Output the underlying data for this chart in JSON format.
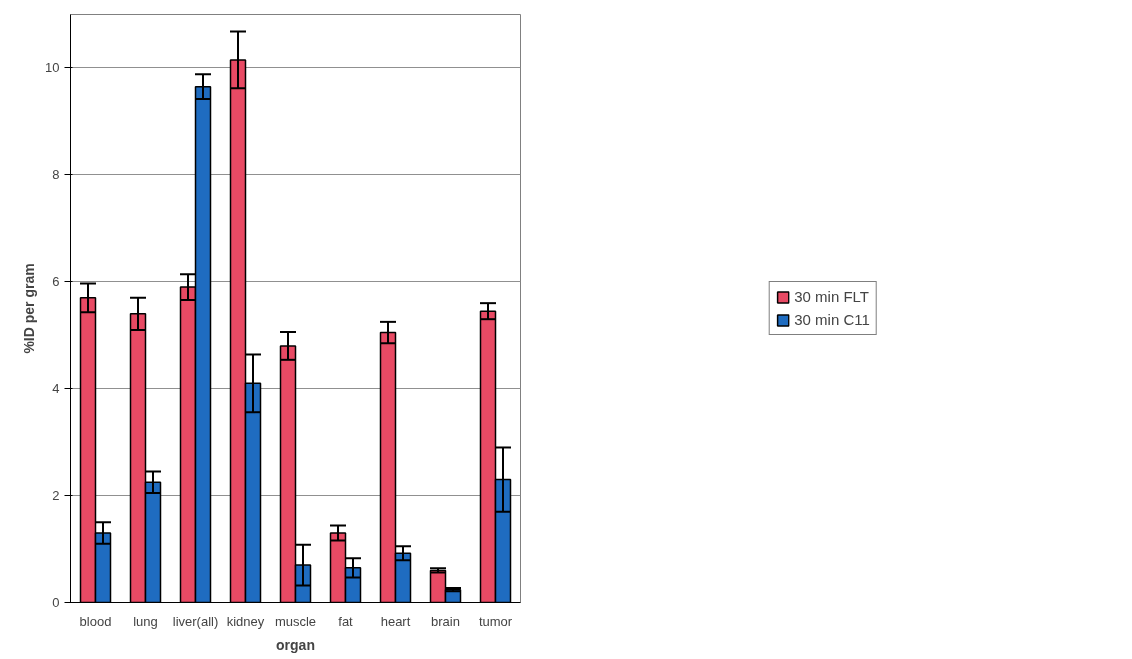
{
  "chart_data": {
    "type": "bar",
    "xlabel": "organ",
    "ylabel": "%ID per gram",
    "categories": [
      "blood",
      "lung",
      "liver(all)",
      "kidney",
      "muscle",
      "fat",
      "heart",
      "brain",
      "tumor"
    ],
    "series": [
      {
        "name": "30 min FLT",
        "color": "#e84a64",
        "values": [
          5.7,
          5.4,
          5.9,
          10.15,
          4.8,
          1.3,
          5.05,
          0.6,
          5.45
        ],
        "errors": [
          0.27,
          0.3,
          0.24,
          0.53,
          0.26,
          0.14,
          0.2,
          0.04,
          0.15
        ]
      },
      {
        "name": "30 min C11",
        "color": "#1f6cc0",
        "values": [
          1.3,
          2.25,
          9.65,
          4.1,
          0.7,
          0.65,
          0.92,
          0.24,
          2.3
        ],
        "errors": [
          0.2,
          0.2,
          0.23,
          0.54,
          0.38,
          0.18,
          0.13,
          0.03,
          0.6
        ]
      }
    ],
    "ylim": [
      0,
      11
    ],
    "yticks": [
      0,
      2,
      4,
      6,
      8,
      10
    ],
    "grid": "y",
    "legend": "right"
  }
}
